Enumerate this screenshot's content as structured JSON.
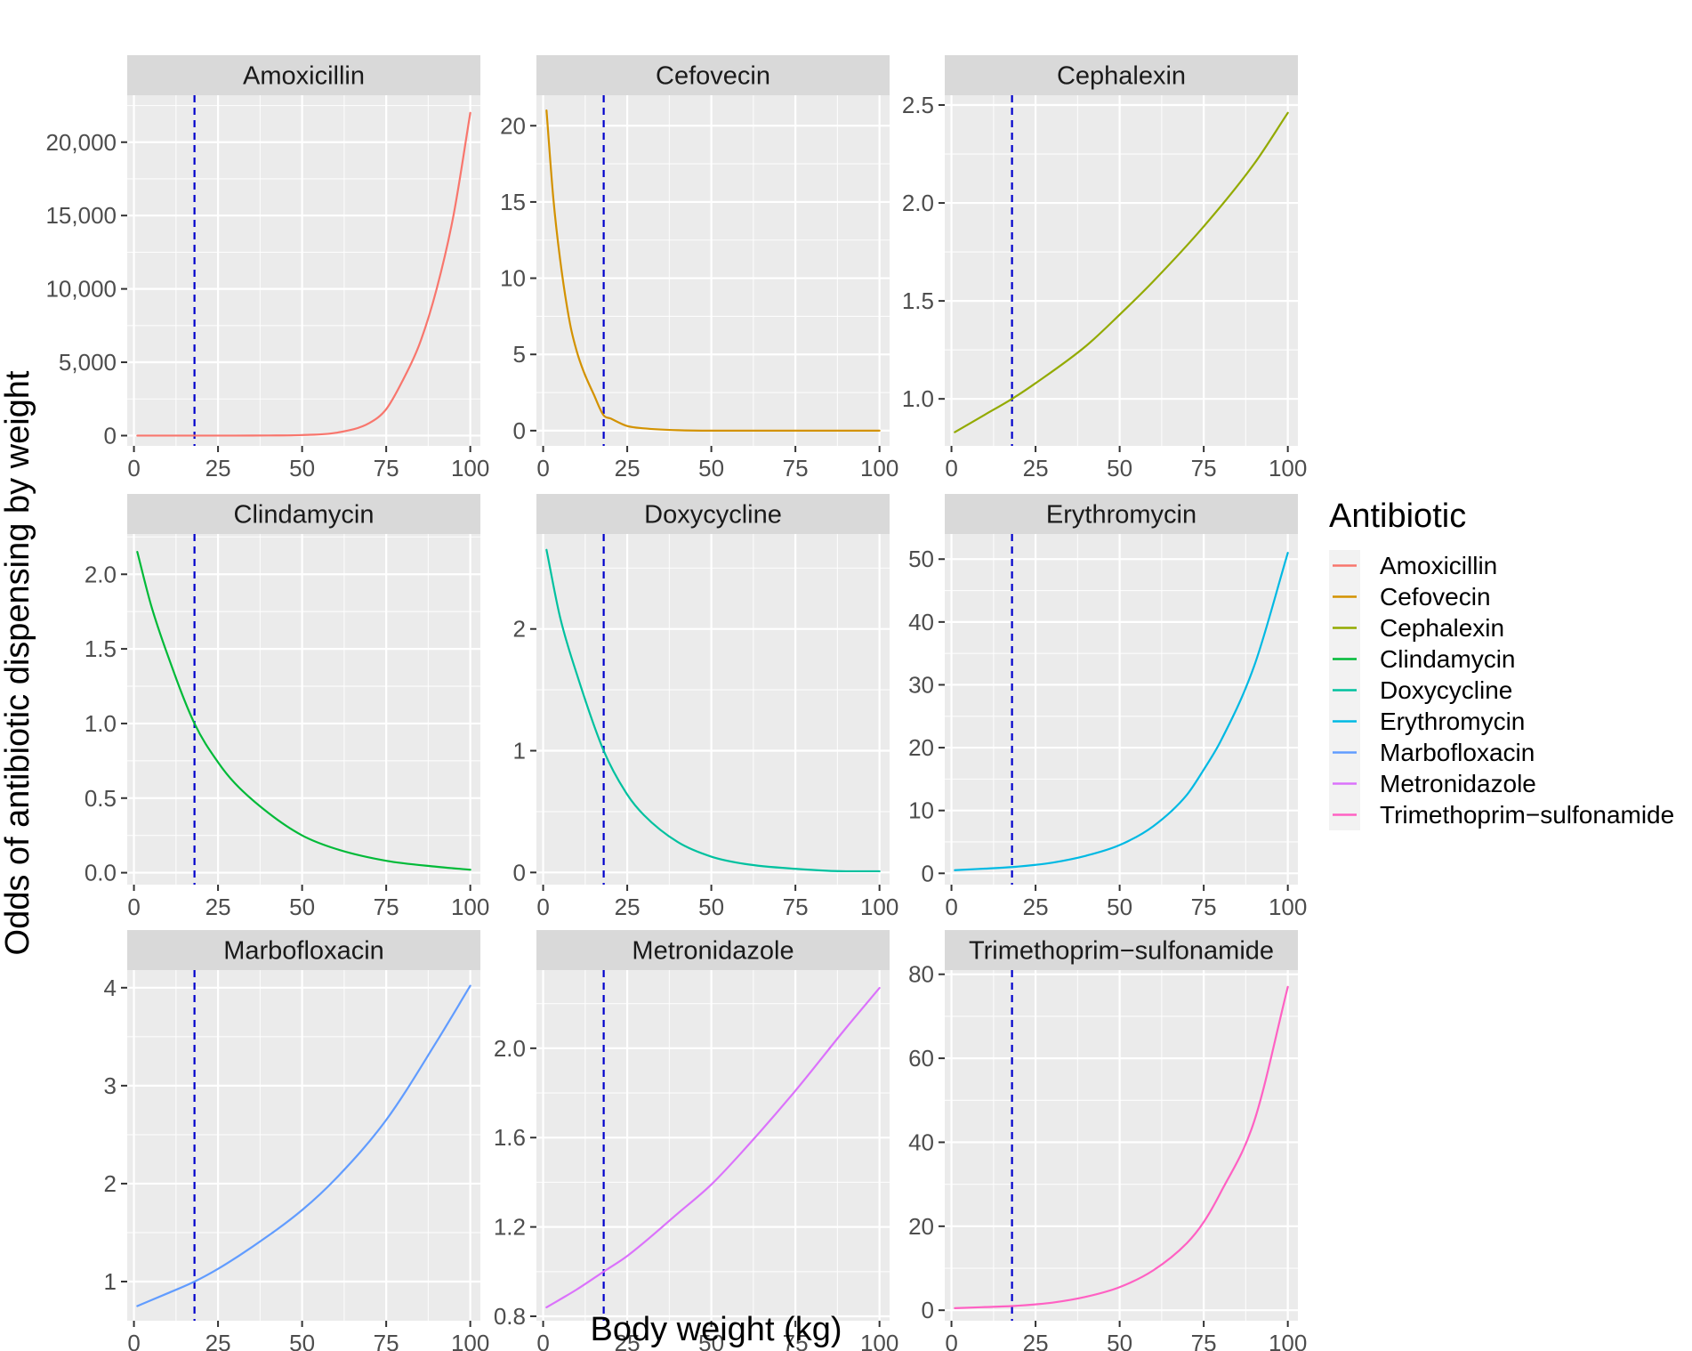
{
  "figure": {
    "xlabel": "Body weight (kg)",
    "ylabel": "Odds of antibiotic dispensing by weight",
    "reference_line": {
      "x": 18,
      "color": "#0000CC",
      "style": "dashed"
    },
    "colors": {
      "panel_bg": "#EBEBEB",
      "strip_bg": "#D9D9D9",
      "grid_major": "#FFFFFF",
      "tick": "#333333"
    }
  },
  "legend": {
    "title": "Antibiotic",
    "items": [
      {
        "label": "Amoxicillin",
        "color": "#F8766D"
      },
      {
        "label": "Cefovecin",
        "color": "#D39200"
      },
      {
        "label": "Cephalexin",
        "color": "#93AA00"
      },
      {
        "label": "Clindamycin",
        "color": "#00BA38"
      },
      {
        "label": "Doxycycline",
        "color": "#00C19F"
      },
      {
        "label": "Erythromycin",
        "color": "#00B9E3"
      },
      {
        "label": "Marbofloxacin",
        "color": "#619CFF"
      },
      {
        "label": "Metronidazole",
        "color": "#DB72FB"
      },
      {
        "label": "Trimethoprim−sulfonamide",
        "color": "#FF61C3"
      }
    ]
  },
  "chart_data": [
    {
      "type": "line",
      "title": "Amoxicillin",
      "color": "#F8766D",
      "x": [
        1,
        10,
        20,
        30,
        40,
        50,
        60,
        70,
        75,
        80,
        85,
        90,
        95,
        100
      ],
      "y": [
        0,
        0,
        0,
        2,
        8,
        40,
        190,
        860,
        1800,
        3800,
        6300,
        10000,
        15000,
        22000
      ],
      "xlim": [
        -2,
        103
      ],
      "ylim": [
        -700,
        23200
      ],
      "xticks": [
        0,
        25,
        50,
        75,
        100
      ],
      "xtick_labels": [
        "0",
        "25",
        "50",
        "75",
        "100"
      ],
      "yticks": [
        0,
        5000,
        10000,
        15000,
        20000
      ],
      "ytick_labels": [
        "0",
        "5,000",
        "10,000",
        "15,000",
        "20,000"
      ]
    },
    {
      "type": "line",
      "title": "Cefovecin",
      "color": "#D39200",
      "x": [
        1,
        3,
        5,
        8,
        10,
        12,
        15,
        18,
        20,
        25,
        30,
        40,
        50,
        60,
        75,
        100
      ],
      "y": [
        21,
        15.3,
        11.3,
        7.0,
        5.2,
        3.9,
        2.4,
        1.0,
        0.8,
        0.3,
        0.15,
        0.03,
        0,
        0,
        0,
        0
      ],
      "xlim": [
        -2,
        103
      ],
      "ylim": [
        -1,
        22
      ],
      "xticks": [
        0,
        25,
        50,
        75,
        100
      ],
      "xtick_labels": [
        "0",
        "25",
        "50",
        "75",
        "100"
      ],
      "yticks": [
        0,
        5,
        10,
        15,
        20
      ],
      "ytick_labels": [
        "0",
        "5",
        "10",
        "15",
        "20"
      ]
    },
    {
      "type": "line",
      "title": "Cephalexin",
      "color": "#93AA00",
      "x": [
        1,
        10,
        18,
        25,
        40,
        50,
        60,
        75,
        90,
        100
      ],
      "y": [
        0.83,
        0.92,
        1.0,
        1.08,
        1.27,
        1.43,
        1.6,
        1.88,
        2.2,
        2.46
      ],
      "xlim": [
        -2,
        103
      ],
      "ylim": [
        0.76,
        2.55
      ],
      "xticks": [
        0,
        25,
        50,
        75,
        100
      ],
      "xtick_labels": [
        "0",
        "25",
        "50",
        "75",
        "100"
      ],
      "yticks": [
        1.0,
        1.5,
        2.0,
        2.5
      ],
      "ytick_labels": [
        "1.0",
        "1.5",
        "2.0",
        "2.5"
      ]
    },
    {
      "type": "line",
      "title": "Clindamycin",
      "color": "#00BA38",
      "x": [
        1,
        5,
        10,
        18,
        25,
        30,
        40,
        50,
        60,
        75,
        90,
        100
      ],
      "y": [
        2.15,
        1.8,
        1.46,
        1.0,
        0.74,
        0.6,
        0.4,
        0.25,
        0.16,
        0.08,
        0.04,
        0.02
      ],
      "xlim": [
        -2,
        103
      ],
      "ylim": [
        -0.08,
        2.27
      ],
      "xticks": [
        0,
        25,
        50,
        75,
        100
      ],
      "xtick_labels": [
        "0",
        "25",
        "50",
        "75",
        "100"
      ],
      "yticks": [
        0,
        0.5,
        1,
        1.5,
        2
      ],
      "ytick_labels": [
        "0.0",
        "0.5",
        "1.0",
        "1.5",
        "2.0"
      ]
    },
    {
      "type": "line",
      "title": "Doxycycline",
      "color": "#00C19F",
      "x": [
        1,
        5,
        10,
        18,
        25,
        30,
        40,
        50,
        60,
        75,
        90,
        100
      ],
      "y": [
        2.65,
        2.1,
        1.63,
        1.0,
        0.64,
        0.47,
        0.25,
        0.13,
        0.07,
        0.03,
        0.01,
        0.01
      ],
      "xlim": [
        -2,
        103
      ],
      "ylim": [
        -0.1,
        2.78
      ],
      "xticks": [
        0,
        25,
        50,
        75,
        100
      ],
      "xtick_labels": [
        "0",
        "25",
        "50",
        "75",
        "100"
      ],
      "yticks": [
        0,
        1,
        2
      ],
      "ytick_labels": [
        "0",
        "1",
        "2"
      ]
    },
    {
      "type": "line",
      "title": "Erythromycin",
      "color": "#00B9E3",
      "x": [
        1,
        10,
        18,
        25,
        30,
        40,
        50,
        60,
        70,
        75,
        80,
        90,
        100
      ],
      "y": [
        0.5,
        0.75,
        1.0,
        1.35,
        1.7,
        2.8,
        4.5,
        7.5,
        12.5,
        16.5,
        21,
        33,
        51
      ],
      "xlim": [
        -2,
        103
      ],
      "ylim": [
        -1.8,
        54
      ],
      "xticks": [
        0,
        25,
        50,
        75,
        100
      ],
      "xtick_labels": [
        "0",
        "25",
        "50",
        "75",
        "100"
      ],
      "yticks": [
        0,
        10,
        20,
        30,
        40,
        50
      ],
      "ytick_labels": [
        "0",
        "10",
        "20",
        "30",
        "40",
        "50"
      ]
    },
    {
      "type": "line",
      "title": "Marbofloxacin",
      "color": "#619CFF",
      "x": [
        1,
        10,
        18,
        25,
        35,
        50,
        60,
        75,
        90,
        100
      ],
      "y": [
        0.75,
        0.88,
        1.0,
        1.13,
        1.35,
        1.73,
        2.05,
        2.65,
        3.45,
        4.02
      ],
      "xlim": [
        -2,
        103
      ],
      "ylim": [
        0.6,
        4.18
      ],
      "xticks": [
        0,
        25,
        50,
        75,
        100
      ],
      "xtick_labels": [
        "0",
        "25",
        "50",
        "75",
        "100"
      ],
      "yticks": [
        1,
        2,
        3,
        4
      ],
      "ytick_labels": [
        "1",
        "2",
        "3",
        "4"
      ]
    },
    {
      "type": "line",
      "title": "Metronidazole",
      "color": "#DB72FB",
      "x": [
        1,
        10,
        18,
        25,
        40,
        50,
        60,
        75,
        90,
        100
      ],
      "y": [
        0.84,
        0.92,
        1.0,
        1.07,
        1.26,
        1.39,
        1.55,
        1.81,
        2.09,
        2.27
      ],
      "xlim": [
        -2,
        103
      ],
      "ylim": [
        0.78,
        2.35
      ],
      "xticks": [
        0,
        25,
        50,
        75,
        100
      ],
      "xtick_labels": [
        "0",
        "25",
        "50",
        "75",
        "100"
      ],
      "yticks": [
        0.8,
        1.2,
        1.6,
        2.0
      ],
      "ytick_labels": [
        "0.8",
        "1.2",
        "1.6",
        "2.0"
      ]
    },
    {
      "type": "line",
      "title": "Trimethoprim−sulfonamide",
      "color": "#FF61C3",
      "x": [
        1,
        10,
        18,
        25,
        30,
        40,
        50,
        60,
        70,
        75,
        80,
        90,
        100
      ],
      "y": [
        0.5,
        0.75,
        1.0,
        1.4,
        1.8,
        3.2,
        5.5,
        9.5,
        16,
        21,
        28,
        45,
        77
      ],
      "xlim": [
        -2,
        103
      ],
      "ylim": [
        -2.5,
        81
      ],
      "xticks": [
        0,
        25,
        50,
        75,
        100
      ],
      "xtick_labels": [
        "0",
        "25",
        "50",
        "75",
        "100"
      ],
      "yticks": [
        0,
        20,
        40,
        60,
        80
      ],
      "ytick_labels": [
        "0",
        "20",
        "40",
        "60",
        "80"
      ]
    }
  ]
}
